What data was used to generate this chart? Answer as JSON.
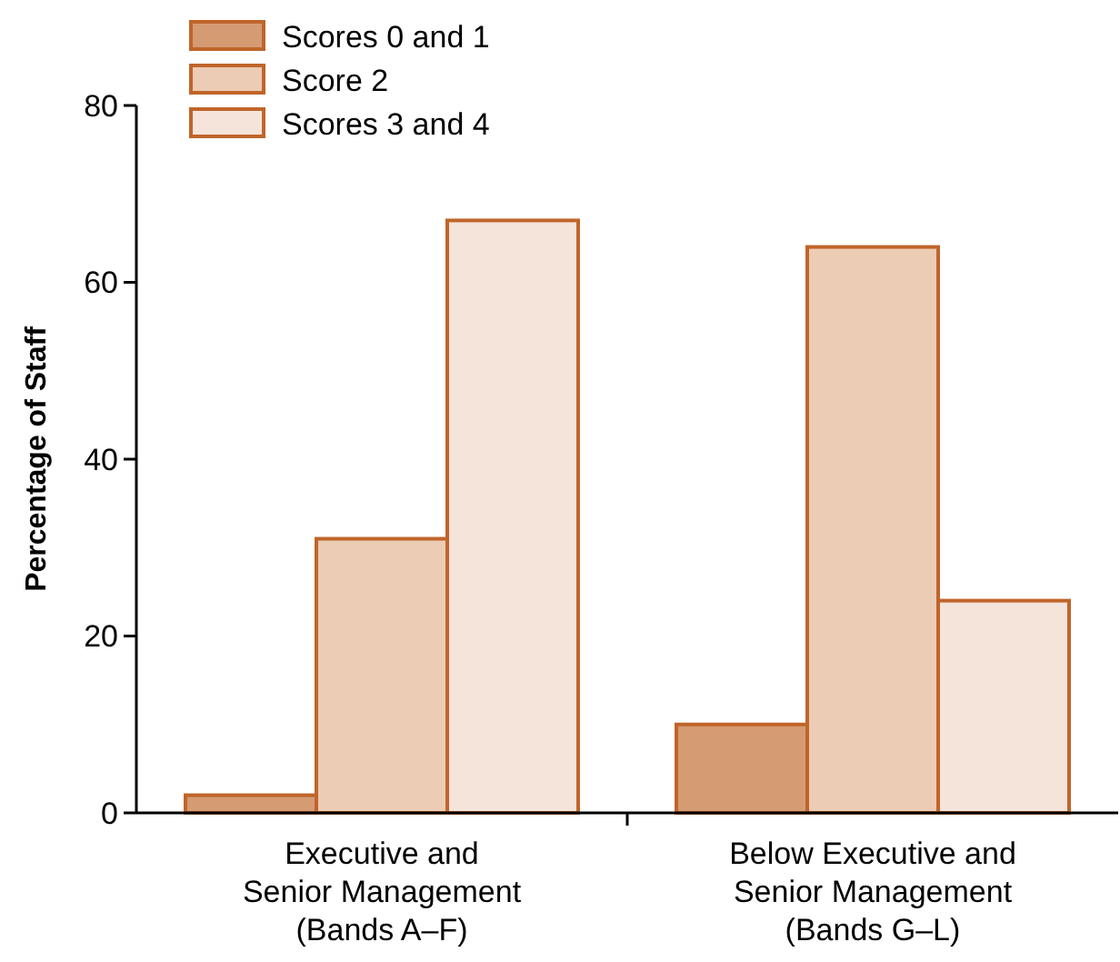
{
  "chart_data": {
    "type": "bar",
    "ylabel": "Percentage of Staff",
    "categories": [
      "Executive and\nSenior Management\n(Bands A–F)",
      "Below Executive and\nSenior Management\n(Bands G–L)"
    ],
    "series": [
      {
        "name": "Scores 0 and 1",
        "color": "#d59b73",
        "values": [
          2,
          10
        ]
      },
      {
        "name": "Score 2",
        "color": "#ecccb4",
        "values": [
          31,
          64
        ]
      },
      {
        "name": "Scores 3 and 4",
        "color": "#f5e4da",
        "values": [
          67,
          24
        ]
      }
    ],
    "ylim": [
      0,
      80
    ],
    "yticks": [
      0,
      20,
      40,
      60,
      80
    ],
    "grid": false,
    "legend": "top left"
  }
}
